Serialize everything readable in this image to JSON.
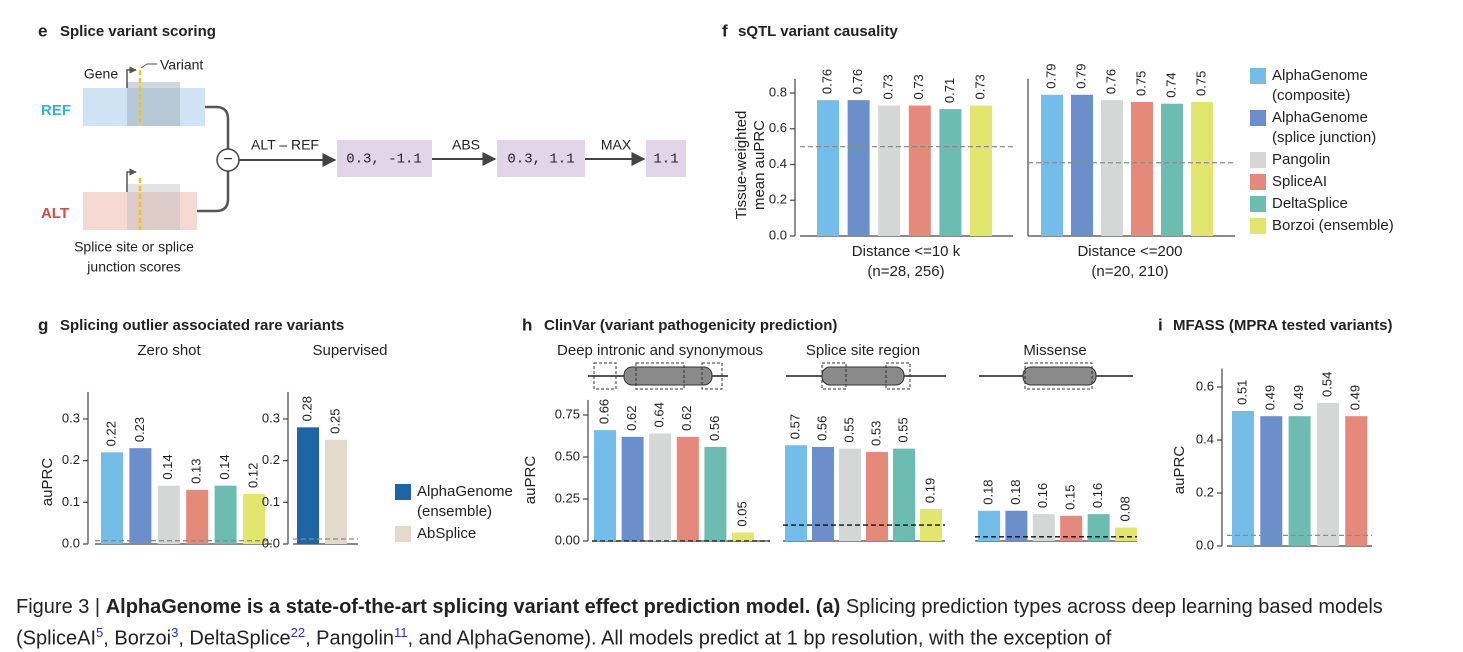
{
  "diagram": {
    "label": "e",
    "title": "Splice variant scoring",
    "gene": "Gene",
    "variant": "Variant",
    "ref": "REF",
    "alt": "ALT",
    "operator": "−",
    "note": [
      "Splice site or splice",
      "junction scores"
    ],
    "steps": [
      {
        "label": "ALT – REF",
        "output": "0.3, -1.1"
      },
      {
        "label": "ABS",
        "output": "0.3, 1.1"
      },
      {
        "label": "MAX",
        "output": "1.1"
      }
    ]
  },
  "chart_data": [
    {
      "type": "bar",
      "panel": "f",
      "title": "sQTL variant causality",
      "ylabel": [
        "Tissue-weighted",
        "mean auPRC"
      ],
      "ylim": [
        0,
        0.88
      ],
      "yticks": [
        {
          "value": 0,
          "label": "0.0"
        },
        0.2,
        0.4,
        0.6,
        0.8
      ],
      "baseline_color": "#8c8c8c",
      "groups": [
        {
          "xlabel": [
            "Distance <=10 k",
            "(n=28, 256)"
          ],
          "baseline": 0.5
        },
        {
          "xlabel": [
            "Distance <=200",
            "(n=20, 210)"
          ],
          "baseline": 0.41
        }
      ],
      "series": [
        {
          "name": "AlphaGenome (composite)",
          "color": "#74bde9",
          "values": [
            0.76,
            0.79
          ]
        },
        {
          "name": "AlphaGenome (splice junction)",
          "color": "#6b8fcb",
          "values": [
            0.76,
            0.79
          ]
        },
        {
          "name": "Pangolin",
          "color": "#d5d6d6",
          "values": [
            0.73,
            0.76
          ]
        },
        {
          "name": "SpliceAI",
          "color": "#e5897a",
          "values": [
            0.73,
            0.75
          ]
        },
        {
          "name": "DeltaSplice",
          "color": "#6dbcb1",
          "values": [
            0.71,
            0.74
          ]
        },
        {
          "name": "Borzoi (ensemble)",
          "color": "#e3e66e",
          "values": [
            0.73,
            0.75
          ]
        }
      ]
    },
    {
      "type": "bar",
      "panel": "g",
      "title": "Splicing outlier associated rare variants",
      "subtitle": "Zero shot",
      "ylabel": "auPRC",
      "ylim": [
        0,
        0.365
      ],
      "yticks": [
        {
          "value": 0,
          "label": "0.0"
        },
        0.1,
        0.2,
        0.3
      ],
      "values": [
        0.22,
        0.23,
        0.14,
        0.13,
        0.14,
        0.12
      ],
      "colors": [
        "#74bde9",
        "#6b8fcb",
        "#d5d6d6",
        "#e5897a",
        "#6dbcb1",
        "#e3e66e"
      ],
      "baseline": 0.008,
      "baseline_color": "#8c8c8c"
    },
    {
      "type": "bar",
      "subtitle": "Supervised",
      "ylim": [
        0,
        0.365
      ],
      "yticks": [
        {
          "value": 0,
          "label": "0.0"
        },
        0.1,
        0.2,
        0.3
      ],
      "series": [
        {
          "name": "AlphaGenome (ensemble)",
          "color": "#1f65a5",
          "values": [
            0.28
          ]
        },
        {
          "name": "AbSplice",
          "color": "#e3dacd",
          "values": [
            0.25
          ]
        }
      ],
      "baseline": 0.012,
      "baseline_color": "#8c8c8c"
    },
    {
      "type": "bar",
      "panel": "h",
      "title": "ClinVar (variant pathogenicity prediction)",
      "subtitle": "Deep intronic and synonymous",
      "ylabel": "auPRC",
      "ylim": [
        0,
        0.84
      ],
      "yticks": [
        {
          "value": 0,
          "label": "0.00"
        },
        0.25,
        {
          "value": 0.5,
          "label": "0.50"
        },
        0.75
      ],
      "values": [
        0.66,
        0.62,
        0.64,
        0.62,
        0.56,
        0.05
      ],
      "colors": [
        "#74bde9",
        "#6b8fcb",
        "#d5d6d6",
        "#e5897a",
        "#6dbcb1",
        "#e3e66e"
      ],
      "baseline": 0,
      "baseline_color": "#111111"
    },
    {
      "type": "bar",
      "subtitle": "Splice site region",
      "ylim": [
        0,
        0.84
      ],
      "values": [
        0.57,
        0.56,
        0.55,
        0.53,
        0.55,
        0.19
      ],
      "colors": [
        "#74bde9",
        "#6b8fcb",
        "#d5d6d6",
        "#e5897a",
        "#6dbcb1",
        "#e3e66e"
      ],
      "baseline": 0.095,
      "baseline_color": "#111111"
    },
    {
      "type": "bar",
      "subtitle": "Missense",
      "ylim": [
        0,
        0.84
      ],
      "values": [
        0.18,
        0.18,
        0.16,
        0.15,
        0.16,
        0.08
      ],
      "colors": [
        "#74bde9",
        "#6b8fcb",
        "#d5d6d6",
        "#e5897a",
        "#6dbcb1",
        "#e3e66e"
      ],
      "baseline": 0.025,
      "baseline_color": "#111111"
    },
    {
      "type": "bar",
      "panel": "i",
      "title": "MFASS (MPRA tested variants)",
      "ylabel": "auPRC",
      "ylim": [
        0,
        0.67
      ],
      "yticks": [
        {
          "value": 0,
          "label": "0.0"
        },
        0.2,
        0.4,
        0.6
      ],
      "values": [
        0.51,
        0.49,
        0.49,
        0.54,
        0.49
      ],
      "colors": [
        "#74bde9",
        "#6b8fcb",
        "#6dbcb1",
        "#d5d6d6",
        "#e5897a"
      ],
      "baseline": 0.04,
      "baseline_color": "#8c8c8c"
    }
  ],
  "caption": {
    "segments": [
      "Figure 3 |",
      "AlphaGenome is a state-of-the-art splicing variant effect prediction model. (a)",
      "Splicing prediction types across deep learning based models (SpliceAI",
      "5",
      ", Borzoi",
      "3",
      ", DeltaSplice",
      "22",
      ", Pangolin",
      "11",
      ", and AlphaGenome). All models predict at 1 bp resolution, with the exception of"
    ]
  }
}
